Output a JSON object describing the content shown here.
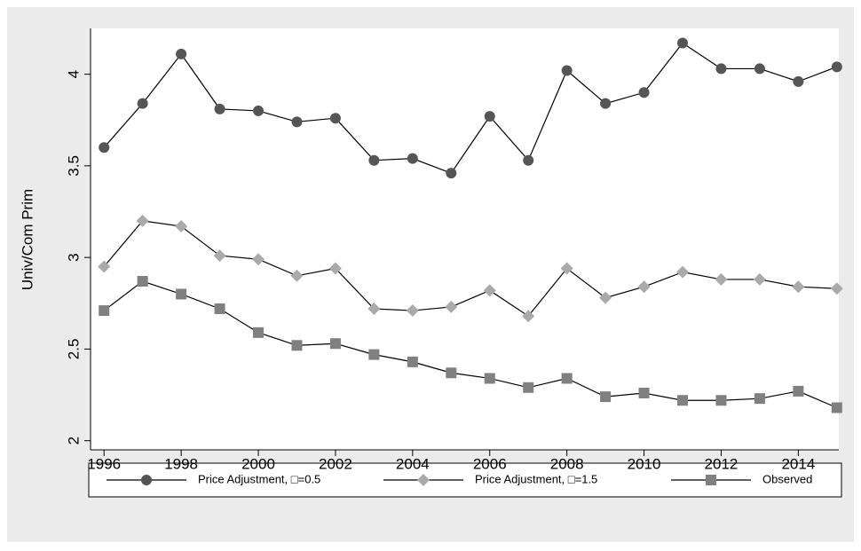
{
  "chart_data": {
    "type": "line",
    "y_label": "Univ/Com Prim",
    "x": [
      1996,
      1997,
      1998,
      1999,
      2000,
      2001,
      2002,
      2003,
      2004,
      2005,
      2006,
      2007,
      2008,
      2009,
      2010,
      2011,
      2012,
      2013,
      2014,
      2015
    ],
    "series": [
      {
        "name": "Price Adjustment, □=0.5",
        "color": "#555555",
        "marker": "circle",
        "values": [
          3.6,
          3.84,
          4.11,
          3.81,
          3.8,
          3.74,
          3.76,
          3.53,
          3.54,
          3.46,
          3.77,
          3.53,
          4.02,
          3.84,
          3.9,
          4.17,
          4.03,
          4.03,
          3.96,
          4.04
        ]
      },
      {
        "name": "Price Adjustment, □=1.5",
        "color": "#aaaaaa",
        "marker": "diamond",
        "values": [
          2.95,
          3.2,
          3.17,
          3.01,
          2.99,
          2.9,
          2.94,
          2.72,
          2.71,
          2.73,
          2.82,
          2.68,
          2.94,
          2.78,
          2.84,
          2.92,
          2.88,
          2.88,
          2.84,
          2.83
        ]
      },
      {
        "name": "Observed",
        "color": "#808080",
        "marker": "square",
        "values": [
          2.71,
          2.87,
          2.8,
          2.72,
          2.59,
          2.52,
          2.53,
          2.47,
          2.43,
          2.37,
          2.34,
          2.29,
          2.34,
          2.24,
          2.26,
          2.22,
          2.22,
          2.23,
          2.27,
          2.18
        ]
      }
    ],
    "line_color": "#000000",
    "xlim": [
      1995.65,
      2015.05
    ],
    "xticks": [
      1996,
      1998,
      2000,
      2002,
      2004,
      2006,
      2008,
      2010,
      2012,
      2014
    ],
    "ylim": [
      1.95,
      4.25
    ],
    "yticks": [
      2,
      2.5,
      3,
      3.5,
      4
    ],
    "grid": false,
    "legend": "bottom"
  }
}
